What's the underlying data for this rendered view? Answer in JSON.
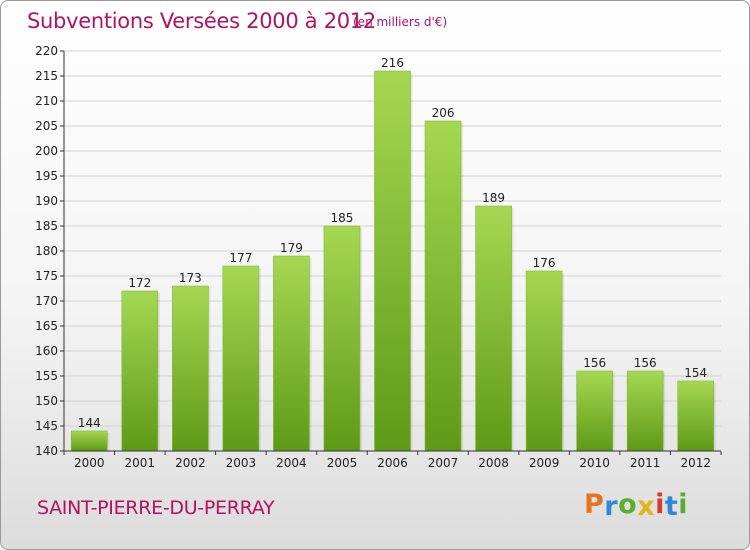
{
  "title": "Subventions Versées 2000 à 2012",
  "subtitle": "(en milliers d'€)",
  "place": "SAINT-PIERRE-DU-PERRAY",
  "logo": {
    "letters": [
      "P",
      "r",
      "o",
      "x",
      "i",
      "t",
      "i"
    ],
    "colors": [
      "#e8731e",
      "#2f88d6",
      "#55b02a",
      "#e2b41a",
      "#d63a2a",
      "#2f88d6",
      "#55b02a"
    ]
  },
  "colors": {
    "bar_top": "#a6d752",
    "bar_bottom": "#5e9a17",
    "grid": "#d2d2d2",
    "axis": "#333333",
    "text": "#222222"
  },
  "chart_data": {
    "type": "bar",
    "categories": [
      "2000",
      "2001",
      "2002",
      "2003",
      "2004",
      "2005",
      "2006",
      "2007",
      "2008",
      "2009",
      "2010",
      "2011",
      "2012"
    ],
    "values": [
      144,
      172,
      173,
      177,
      179,
      185,
      216,
      206,
      189,
      176,
      156,
      156,
      154
    ],
    "data_labels": [
      "144",
      "172",
      "173",
      "177",
      "179",
      "185",
      "216",
      "206",
      "189",
      "176",
      "156",
      "156",
      "154"
    ],
    "ylim": [
      140,
      220
    ],
    "yticks": [
      "140",
      "145",
      "150",
      "155",
      "160",
      "165",
      "170",
      "175",
      "180",
      "185",
      "190",
      "195",
      "200",
      "205",
      "210",
      "215",
      "220"
    ],
    "grid": true
  }
}
